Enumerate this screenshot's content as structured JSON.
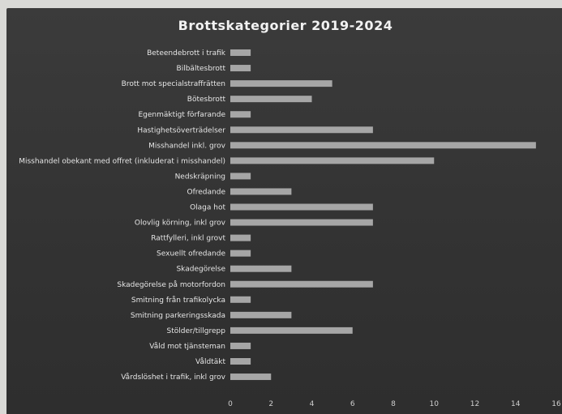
{
  "chart_data": {
    "type": "bar",
    "orientation": "horizontal",
    "title": "Brottskategorier 2019-2024",
    "categories": [
      "Beteendebrott i trafik",
      "Bilbältesbrott",
      "Brott mot specialstraffrätten",
      "Bötesbrott",
      "Egenmäktigt förfarande",
      "Hastighetsöverträdelser",
      "Misshandel inkl. grov",
      "Misshandel obekant med offret (inkluderat i misshandel)",
      "Nedskräpning",
      "Ofredande",
      "Olaga hot",
      "Olovlig körning, inkl grov",
      "Rattfylleri, inkl grovt",
      "Sexuellt ofredande",
      "Skadegörelse",
      "Skadegörelse på motorfordon",
      "Smitning från trafikolycka",
      "Smitning parkeringsskada",
      "Stölder/tillgrepp",
      "Våld mot tjänsteman",
      "Våldtäkt",
      "Vårdslöshet i trafik, inkl grov"
    ],
    "values": [
      1,
      1,
      5,
      4,
      1,
      7,
      15,
      10,
      1,
      3,
      7,
      7,
      1,
      1,
      3,
      7,
      1,
      3,
      6,
      1,
      1,
      2
    ],
    "xlim": [
      0,
      16
    ],
    "xticks": [
      0,
      2,
      4,
      6,
      8,
      10,
      12,
      14,
      16
    ],
    "xlabel": "",
    "ylabel": "",
    "grid": false,
    "colors": {
      "background": "#363636",
      "bar": "#a6a6a6",
      "text": "#e6e6e6",
      "title": "#f2f2f2"
    }
  }
}
